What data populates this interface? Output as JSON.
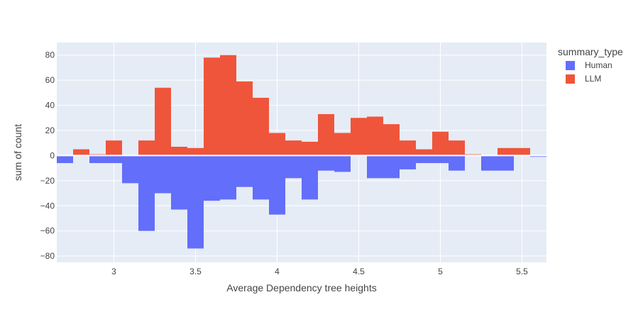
{
  "chart_data": {
    "type": "bar",
    "barmode": "relative",
    "bin_width": 0.1,
    "xlabel": "Average Dependency tree heights",
    "ylabel": "sum of count",
    "xlim": [
      2.65,
      5.65
    ],
    "ylim": [
      -85,
      90
    ],
    "xticks": [
      3,
      3.5,
      4,
      4.5,
      5,
      5.5
    ],
    "yticks": [
      -80,
      -60,
      -40,
      -20,
      0,
      20,
      40,
      60,
      80
    ],
    "legend_title": "summary_type",
    "legend_position": "top-right",
    "grid": true,
    "series": [
      {
        "name": "Human",
        "color": "#636efa",
        "x": [
          2.7,
          2.9,
          3.0,
          3.1,
          3.2,
          3.3,
          3.4,
          3.5,
          3.6,
          3.7,
          3.8,
          3.9,
          4.0,
          4.1,
          4.2,
          4.3,
          4.4,
          4.6,
          4.7,
          4.8,
          4.9,
          5.0,
          5.1,
          5.3,
          5.4,
          5.6
        ],
        "values": [
          -6,
          -6,
          -6,
          -22,
          -60,
          -30,
          -43,
          -74,
          -36,
          -35,
          -25,
          -35,
          -47,
          -18,
          -35,
          -12,
          -13,
          -18,
          -18,
          -11,
          -6,
          -6,
          -12,
          -12,
          -12,
          -1
        ]
      },
      {
        "name": "LLM",
        "color": "#ef553b",
        "x": [
          2.8,
          2.9,
          3.0,
          3.2,
          3.3,
          3.4,
          3.5,
          3.6,
          3.7,
          3.8,
          3.9,
          4.0,
          4.1,
          4.2,
          4.3,
          4.4,
          4.5,
          4.6,
          4.7,
          4.8,
          4.9,
          5.0,
          5.1,
          5.2,
          5.4,
          5.5
        ],
        "values": [
          5,
          1,
          12,
          12,
          54,
          7,
          6,
          78,
          80,
          59,
          46,
          18,
          12,
          11,
          33,
          18,
          30,
          31,
          25,
          12,
          5,
          19,
          12,
          1,
          6,
          6
        ]
      }
    ]
  }
}
